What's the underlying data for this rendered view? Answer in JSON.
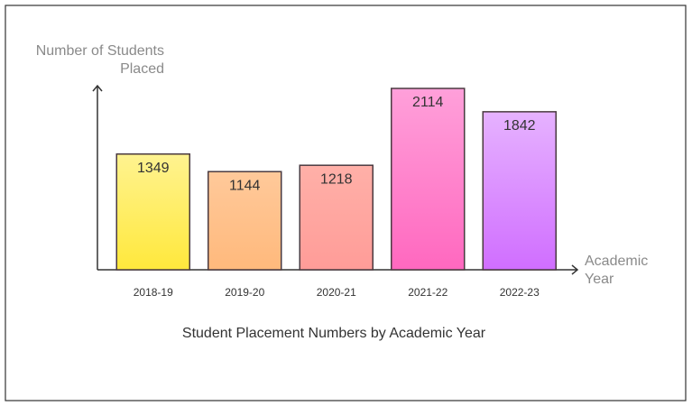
{
  "chart_data": {
    "type": "bar",
    "title": "Student Placement Numbers by Academic Year",
    "y_label": "Number of Students Placed",
    "x_label": "Academic Year",
    "categories": [
      "2018-19",
      "2019-20",
      "2020-21",
      "2021-22",
      "2022-23"
    ],
    "values": [
      1349,
      1144,
      1218,
      2114,
      1842
    ],
    "colors": [
      [
        "#fff390",
        "#ffe83c"
      ],
      [
        "#ffc99a",
        "#ffb97c"
      ],
      [
        "#ffb0a8",
        "#ff9c98"
      ],
      [
        "#ffa0da",
        "#ff68bf"
      ],
      [
        "#e6b2ff",
        "#d06eff"
      ]
    ]
  }
}
